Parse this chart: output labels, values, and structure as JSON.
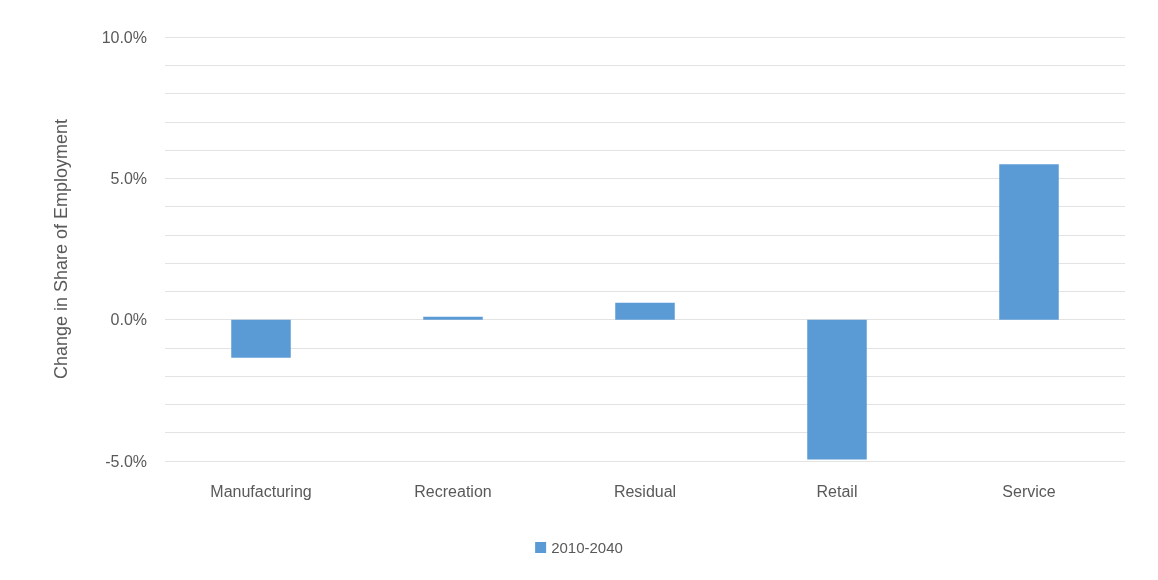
{
  "chart_data": {
    "type": "bar",
    "ylabel": "Change in Share of Employment",
    "categories": [
      "Manufacturing",
      "Recreation",
      "Residual",
      "Retail",
      "Service"
    ],
    "series": [
      {
        "name": "2010-2040",
        "color": "#5b9bd5",
        "values": [
          -1.35,
          0.1,
          0.6,
          -4.95,
          5.5
        ]
      }
    ],
    "ylim": [
      -5,
      10
    ],
    "yticks": [
      {
        "value": -5,
        "label": "-5.0%"
      },
      {
        "value": -4,
        "label": null
      },
      {
        "value": -3,
        "label": null
      },
      {
        "value": -2,
        "label": null
      },
      {
        "value": -1,
        "label": null
      },
      {
        "value": 0,
        "label": "0.0%"
      },
      {
        "value": 1,
        "label": null
      },
      {
        "value": 2,
        "label": null
      },
      {
        "value": 3,
        "label": null
      },
      {
        "value": 4,
        "label": null
      },
      {
        "value": 5,
        "label": "5.0%"
      },
      {
        "value": 6,
        "label": null
      },
      {
        "value": 7,
        "label": null
      },
      {
        "value": 8,
        "label": null
      },
      {
        "value": 9,
        "label": null
      },
      {
        "value": 10,
        "label": "10.0%"
      }
    ],
    "grid": "y",
    "legend": "bottom"
  }
}
